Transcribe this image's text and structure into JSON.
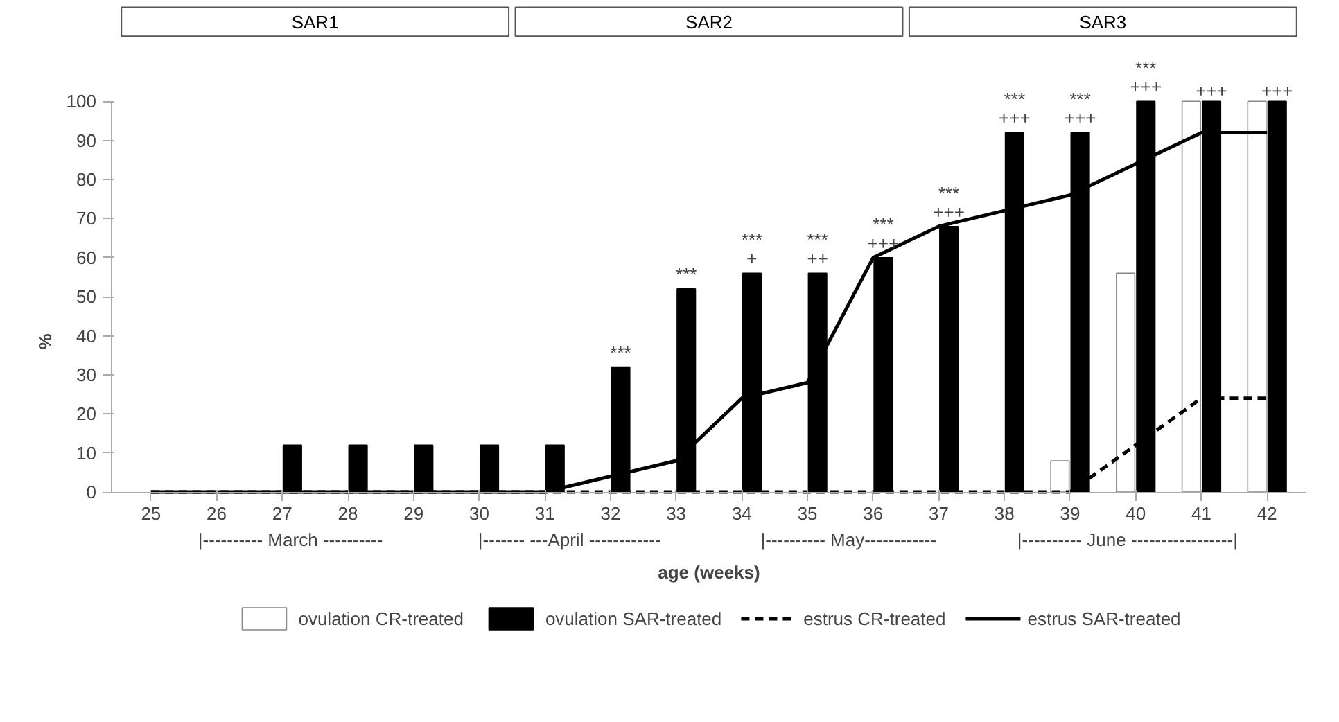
{
  "chart_data": {
    "type": "bar",
    "ylabel": "%",
    "xlabel": "age (weeks)",
    "categories": [
      "25",
      "26",
      "27",
      "28",
      "29",
      "30",
      "31",
      "32",
      "33",
      "34",
      "35",
      "36",
      "37",
      "38",
      "39",
      "40",
      "41",
      "42"
    ],
    "series": [
      {
        "name": "ovulation CR-treated",
        "color": "#ffffff",
        "values": [
          0,
          0,
          0,
          0,
          0,
          0,
          0,
          0,
          0,
          0,
          0,
          0,
          0,
          0,
          8,
          56,
          100,
          100
        ]
      },
      {
        "name": "ovulation SAR-treated",
        "color": "#000000",
        "values": [
          0,
          0,
          12,
          12,
          12,
          12,
          12,
          32,
          52,
          56,
          56,
          60,
          68,
          92,
          92,
          100,
          100,
          100
        ]
      },
      {
        "name": "estrus CR-treated",
        "type": "line",
        "line_style": "dashed",
        "color": "#000000",
        "values": [
          0,
          0,
          0,
          0,
          0,
          0,
          0,
          0,
          0,
          0,
          0,
          0,
          0,
          0,
          0,
          12,
          24,
          24
        ]
      },
      {
        "name": "estrus SAR-treated",
        "type": "line",
        "line_style": "solid",
        "color": "#000000",
        "values": [
          0,
          0,
          0,
          0,
          0,
          0,
          0,
          4,
          8,
          24,
          28,
          60,
          68,
          72,
          76,
          84,
          92,
          92
        ]
      }
    ],
    "ylim": [
      0,
      100
    ],
    "yticks": [
      0,
      10,
      20,
      30,
      40,
      50,
      60,
      70,
      80,
      90,
      100
    ],
    "grid": false,
    "legend": "bottom",
    "annotations": [
      {
        "text": "***",
        "x": "32",
        "y": 32
      },
      {
        "text": "***",
        "x": "33",
        "y": 52
      },
      {
        "text": "***\n+",
        "x": "34",
        "y": 56
      },
      {
        "text": "***\n++",
        "x": "35",
        "y": 56
      },
      {
        "text": "***\n+++",
        "x": "36",
        "y": 60
      },
      {
        "text": "***\n+++",
        "x": "37",
        "y": 68
      },
      {
        "text": "***\n+++",
        "x": "38",
        "y": 92
      },
      {
        "text": "***\n+++",
        "x": "39",
        "y": 92
      },
      {
        "text": "***\n+++",
        "x": "40",
        "y": 100
      },
      {
        "text": "+++",
        "x": "41",
        "y": 100
      },
      {
        "text": "+++",
        "x": "42",
        "y": 100
      },
      "SAR1",
      "SAR2",
      "SAR3",
      "|---------- March ----------",
      "|------- ---April ------------",
      "|---------- May------------",
      "|---------- June -----------------|"
    ]
  }
}
